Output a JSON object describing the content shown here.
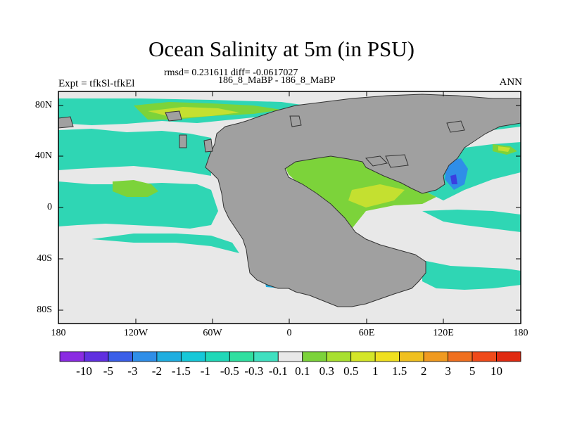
{
  "title": "Ocean Salinity at 5m (in PSU)",
  "stats_line": "rmsd= 0.231611 diff= -0.0617027",
  "case_line": "186_8_MaBP - 186_8_MaBP",
  "experiment_label": "Expt = tfkSl-tfkEl",
  "season_label": "ANN",
  "y_ticks": [
    "80N",
    "40N",
    "0",
    "40S",
    "80S"
  ],
  "x_ticks": [
    "180",
    "120W",
    "60W",
    "0",
    "60E",
    "120E",
    "180"
  ],
  "colorbar": {
    "labels": [
      "-10",
      "-5",
      "-3",
      "-2",
      "-1.5",
      "-1",
      "-0.5",
      "-0.3",
      "-0.1",
      "0.1",
      "0.3",
      "0.5",
      "1",
      "1.5",
      "2",
      "3",
      "5",
      "10"
    ],
    "colors": [
      "#8a2be2",
      "#6030e0",
      "#3a5ee8",
      "#2f8ee8",
      "#20aee0",
      "#16c8d8",
      "#20d8b8",
      "#30dfa0",
      "#40e0c0",
      "#e8e8e8",
      "#7cd33a",
      "#a8e030",
      "#d4e628",
      "#f0e020",
      "#f0c020",
      "#f09a20",
      "#f07020",
      "#f04a1a",
      "#e02a10"
    ]
  },
  "colors": {
    "land": "#a0a0a0",
    "near_zero": "#e8e8e8",
    "neg_small": "#2fd6b4",
    "neg_medium": "#16c8d8",
    "pos_small": "#7cd33a",
    "pos_medium": "#c4e030",
    "neg_strong": "#2f6ee8"
  }
}
